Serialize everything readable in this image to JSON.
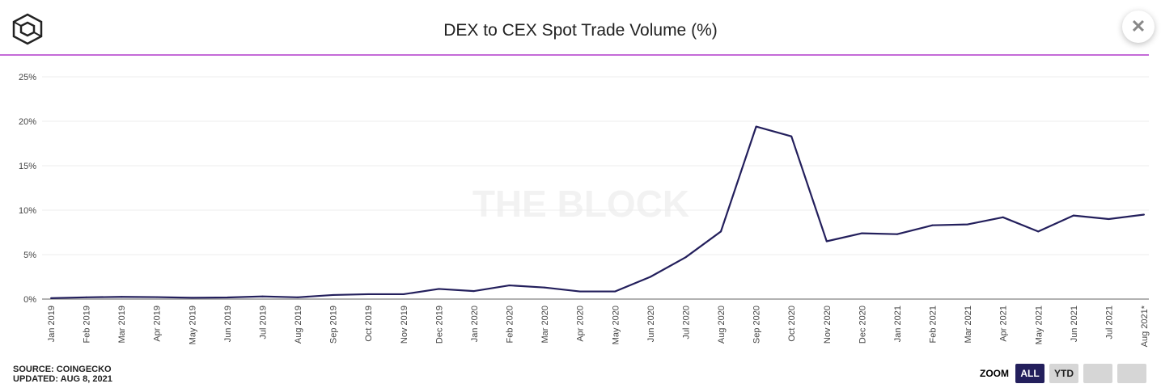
{
  "header": {
    "title": "DEX to CEX Spot Trade Volume (%)",
    "close_label": "✕"
  },
  "watermark": "THE BLOCK",
  "footer": {
    "source": "SOURCE: COINGECKO",
    "updated": "UPDATED: AUG 8, 2021"
  },
  "zoom": {
    "label": "ZOOM",
    "buttons": [
      "ALL",
      "YTD",
      "",
      ""
    ],
    "active": "ALL"
  },
  "chart_data": {
    "type": "line",
    "title": "DEX to CEX Spot Trade Volume (%)",
    "ylim": [
      0,
      25
    ],
    "yticks": [
      "0%",
      "5%",
      "10%",
      "15%",
      "20%",
      "25%"
    ],
    "grid": true,
    "line_color": "#231f5c",
    "categories": [
      "Jan 2019",
      "Feb 2019",
      "Mar 2019",
      "Apr 2019",
      "May 2019",
      "Jun 2019",
      "Jul 2019",
      "Aug 2019",
      "Sep 2019",
      "Oct 2019",
      "Nov 2019",
      "Dec 2019",
      "Jan 2020",
      "Feb 2020",
      "Mar 2020",
      "Apr 2020",
      "May 2020",
      "Jun 2020",
      "Jul 2020",
      "Aug 2020",
      "Sep 2020",
      "Oct 2020",
      "Nov 2020",
      "Dec 2020",
      "Jan 2021",
      "Feb 2021",
      "Mar 2021",
      "Apr 2021",
      "May 2021",
      "Jun 2021",
      "Jul 2021",
      "Aug 2021*"
    ],
    "values": [
      0.1,
      0.2,
      0.25,
      0.22,
      0.15,
      0.18,
      0.3,
      0.2,
      0.46,
      0.55,
      0.55,
      1.14,
      0.9,
      1.54,
      1.3,
      0.86,
      0.86,
      2.5,
      4.7,
      7.6,
      19.4,
      18.3,
      6.5,
      7.4,
      7.3,
      8.3,
      8.4,
      9.2,
      7.6,
      9.4,
      9.0,
      9.5
    ]
  }
}
